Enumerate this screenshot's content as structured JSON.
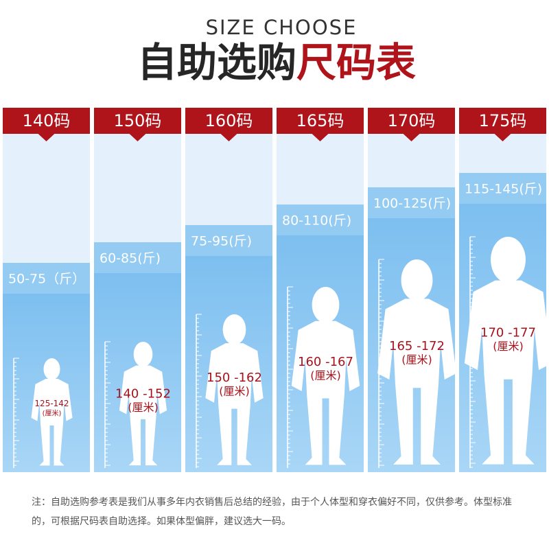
{
  "header": {
    "subtitle": "SIZE CHOOSE",
    "title_dark": "自助选购",
    "title_red": "尺码表"
  },
  "columns": [
    {
      "size": "140码",
      "weight": "50-75（斤）",
      "height": "125-142",
      "unit": "(厘米)"
    },
    {
      "size": "150码",
      "weight": "60-85(斤)",
      "height": "140 -152",
      "unit": "(厘米)"
    },
    {
      "size": "160码",
      "weight": "75-95(斤)",
      "height": "150 -162",
      "unit": "(厘米)"
    },
    {
      "size": "165码",
      "weight": "80-110(斤)",
      "height": "160 -167",
      "unit": "(厘米)"
    },
    {
      "size": "170码",
      "weight": "100-125(斤)",
      "height": "165 -172",
      "unit": "(厘米)"
    },
    {
      "size": "175码",
      "weight": "115-145(斤)",
      "height": "170 -177",
      "unit": "(厘米)"
    }
  ],
  "note": "注：自助选购参考表是我们从事多年内衣销售后总结的经验，由于个人体型和穿衣偏好不同，仅供参考。体型标准的，可根据尺码表自助选择。如果体型偏胖，建议选大一码。"
}
